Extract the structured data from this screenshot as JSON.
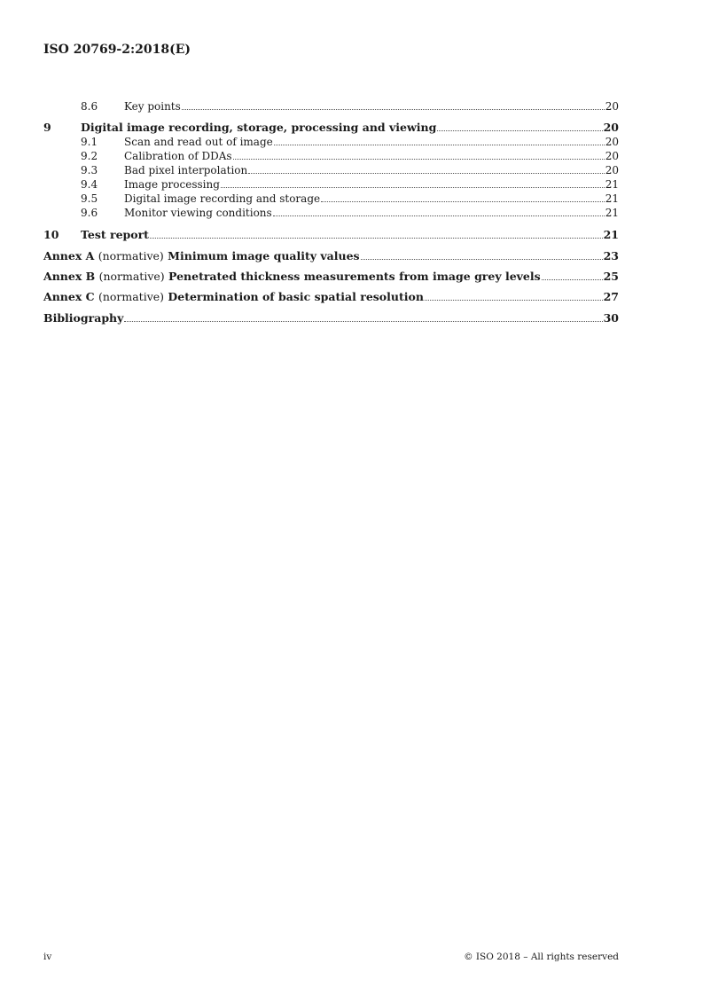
{
  "header": {
    "title": "ISO 20769-2:2018(E)"
  },
  "toc": [
    {
      "num": "8.6",
      "title": "Key points",
      "page": "20",
      "level": "sub"
    },
    {
      "num": "9",
      "title": "Digital image recording, storage, processing and viewing",
      "page": "20",
      "level": "main"
    },
    {
      "num": "9.1",
      "title": "Scan and read out of image",
      "page": "20",
      "level": "sub"
    },
    {
      "num": "9.2",
      "title": "Calibration of DDAs",
      "page": "20",
      "level": "sub"
    },
    {
      "num": "9.3",
      "title": "Bad pixel interpolation",
      "page": "20",
      "level": "sub"
    },
    {
      "num": "9.4",
      "title": "Image processing",
      "page": "21",
      "level": "sub"
    },
    {
      "num": "9.5",
      "title": "Digital image recording and storage",
      "page": "21",
      "level": "sub"
    },
    {
      "num": "9.6",
      "title": "Monitor viewing conditions",
      "page": "21",
      "level": "sub"
    },
    {
      "num": "10",
      "title": "Test report",
      "page": "21",
      "level": "main"
    },
    {
      "prefix": "Annex A",
      "note": "(normative)",
      "title": "Minimum image quality values",
      "page": "23",
      "level": "annex"
    },
    {
      "prefix": "Annex B",
      "note": "(normative)",
      "title": "Penetrated thickness measurements from image grey levels",
      "page": "25",
      "level": "annex"
    },
    {
      "prefix": "Annex C",
      "note": "(normative)",
      "title": "Determination of basic spatial resolution",
      "page": "27",
      "level": "annex"
    },
    {
      "title": "Bibliography",
      "page": "30",
      "level": "main"
    }
  ],
  "footer": {
    "page_number": "iv",
    "copyright": "© ISO 2018 – All rights reserved"
  }
}
